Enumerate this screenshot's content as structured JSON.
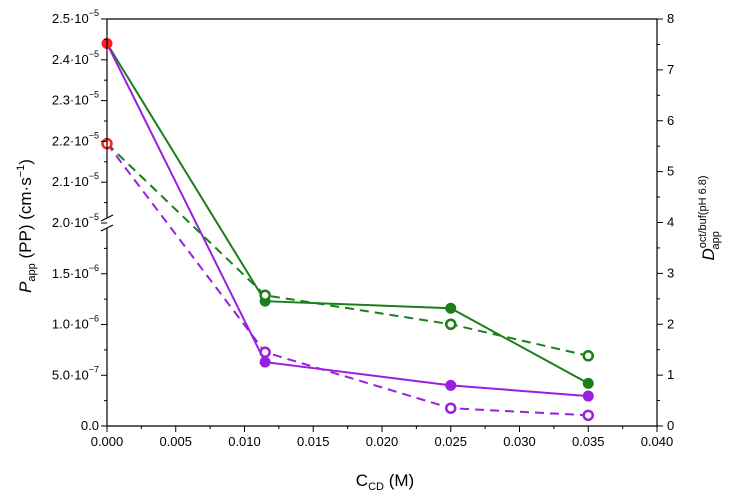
{
  "chart_data": {
    "type": "line",
    "xlabel": {
      "main": "C",
      "sub": "CD",
      "unit": " (M)"
    },
    "ylabel_left": {
      "main": "P",
      "sub": "app",
      "rest": " (PP) (cm·s",
      "sup": "−1",
      "close": ")"
    },
    "ylabel_right": {
      "main": "D",
      "sup": "oct/buf(pH 6.8)",
      "sub": "app"
    },
    "xlim": [
      0.0,
      0.04
    ],
    "x_ticks": [
      "0.000",
      "0.005",
      "0.010",
      "0.015",
      "0.020",
      "0.025",
      "0.030",
      "0.035",
      "0.040"
    ],
    "y_left_lower": {
      "range": [
        0,
        2e-06
      ],
      "ticks": [
        {
          "value": 0,
          "mant": "0.0",
          "exp": ""
        },
        {
          "value": 5e-07,
          "mant": "5.0·10",
          "exp": "−7"
        },
        {
          "value": 1e-06,
          "mant": "1.0·10",
          "exp": "−6"
        },
        {
          "value": 1.5e-06,
          "mant": "1.5·10",
          "exp": "−6"
        }
      ]
    },
    "y_left_upper": {
      "range": [
        2e-05,
        2.5e-05
      ],
      "ticks": [
        {
          "value": 2e-05,
          "mant": "2.0·10",
          "exp": "−5"
        },
        {
          "value": 2.1e-05,
          "mant": "2.1·10",
          "exp": "−5"
        },
        {
          "value": 2.2e-05,
          "mant": "2.2·10",
          "exp": "−5"
        },
        {
          "value": 2.3e-05,
          "mant": "2.3·10",
          "exp": "−5"
        },
        {
          "value": 2.4e-05,
          "mant": "2.4·10",
          "exp": "−5"
        },
        {
          "value": 2.5e-05,
          "mant": "2.5·10",
          "exp": "−5"
        }
      ]
    },
    "y_right": {
      "range": [
        0,
        8
      ],
      "ticks": [
        "0",
        "1",
        "2",
        "3",
        "4",
        "5",
        "6",
        "7",
        "8"
      ]
    },
    "series": [
      {
        "axis": "left",
        "color": "#1a7f1a",
        "dash": false,
        "marker": "filled",
        "points": [
          [
            0.0,
            2.44e-05
          ],
          [
            0.0115,
            1.23e-06
          ],
          [
            0.025,
            1.16e-06
          ],
          [
            0.035,
            4.2e-07
          ]
        ]
      },
      {
        "axis": "left",
        "color": "#9b1fe0",
        "dash": false,
        "marker": "filled",
        "points": [
          [
            0.0,
            2.44e-05
          ],
          [
            0.0115,
            6.3e-07
          ],
          [
            0.025,
            4e-07
          ],
          [
            0.035,
            2.95e-07
          ]
        ]
      },
      {
        "axis": "right",
        "color": "#1a7f1a",
        "dash": true,
        "marker": "open",
        "points": [
          [
            0.0,
            5.55
          ],
          [
            0.0115,
            2.57
          ],
          [
            0.025,
            2.0
          ],
          [
            0.035,
            1.38
          ]
        ]
      },
      {
        "axis": "right",
        "color": "#9b1fe0",
        "dash": true,
        "marker": "open",
        "points": [
          [
            0.0,
            5.55
          ],
          [
            0.0115,
            1.45
          ],
          [
            0.025,
            0.35
          ],
          [
            0.035,
            0.21
          ]
        ]
      }
    ],
    "origin_markers": [
      {
        "axis": "left",
        "x": 0.0,
        "y": 2.44e-05,
        "color": "#ff2020",
        "marker": "filled"
      },
      {
        "axis": "right",
        "x": 0.0,
        "y": 5.55,
        "color": "#ff2020",
        "marker": "open"
      }
    ]
  }
}
